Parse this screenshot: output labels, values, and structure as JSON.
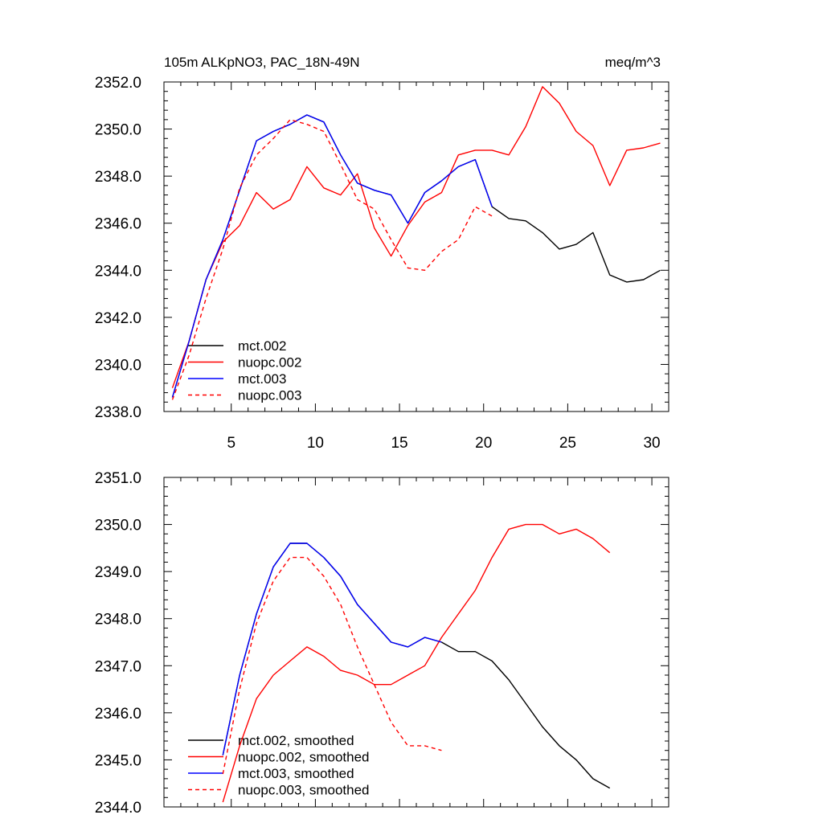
{
  "chart_data": [
    {
      "type": "line",
      "title_left": "105m ALKpNO3, PAC_18N-49N",
      "title_right": "meq/m^3",
      "xlim": [
        1,
        31
      ],
      "ylim": [
        2338.0,
        2352.0
      ],
      "x_ticks": [
        5,
        10,
        15,
        20,
        25,
        30
      ],
      "y_ticks": [
        2338.0,
        2340.0,
        2342.0,
        2344.0,
        2346.0,
        2348.0,
        2350.0,
        2352.0
      ],
      "y_tick_labels": [
        "2338.0",
        "2340.0",
        "2342.0",
        "2344.0",
        "2346.0",
        "2348.0",
        "2350.0",
        "2352.0"
      ],
      "show_x_labels": true,
      "legend_position": "bottom-left",
      "series": [
        {
          "name": "mct.002",
          "color": "#000000",
          "dash": "solid",
          "x": [
            1.5,
            2.5,
            3.5,
            4.5,
            5.5,
            6.5,
            7.5,
            8.5,
            9.5,
            10.5,
            11.5,
            12.5,
            13.5,
            14.5,
            15.5,
            16.5,
            17.5,
            18.5,
            19.5,
            20.5,
            21.5,
            22.5,
            23.5,
            24.5,
            25.5,
            26.5,
            27.5,
            28.5,
            29.5,
            30.5
          ],
          "values": [
            2338.6,
            2341.0,
            2343.6,
            2345.3,
            2347.4,
            2349.5,
            2349.9,
            2350.2,
            2350.6,
            2350.3,
            2348.9,
            2347.7,
            2347.4,
            2347.2,
            2346.0,
            2347.3,
            2347.8,
            2348.4,
            2348.7,
            2346.7,
            2346.2,
            2346.1,
            2345.6,
            2344.9,
            2345.1,
            2345.6,
            2343.8,
            2343.5,
            2343.6,
            2344.0
          ]
        },
        {
          "name": "nuopc.002",
          "color": "#ff0000",
          "dash": "solid",
          "x": [
            1.5,
            2.5,
            3.5,
            4.5,
            5.5,
            6.5,
            7.5,
            8.5,
            9.5,
            10.5,
            11.5,
            12.5,
            13.5,
            14.5,
            15.5,
            16.5,
            17.5,
            18.5,
            19.5,
            20.5,
            21.5,
            22.5,
            23.5,
            24.5,
            25.5,
            26.5,
            27.5,
            28.5,
            29.5,
            30.5
          ],
          "values": [
            2339.0,
            2341.0,
            2343.6,
            2345.2,
            2345.9,
            2347.3,
            2346.6,
            2347.0,
            2348.4,
            2347.5,
            2347.2,
            2348.1,
            2345.8,
            2344.6,
            2345.9,
            2346.9,
            2347.3,
            2348.9,
            2349.1,
            2349.1,
            2348.9,
            2350.1,
            2351.8,
            2351.1,
            2349.9,
            2349.3,
            2347.6,
            2349.1,
            2349.2,
            2349.4
          ]
        },
        {
          "name": "mct.003",
          "color": "#0000ff",
          "dash": "solid",
          "x": [
            1.5,
            2.5,
            3.5,
            4.5,
            5.5,
            6.5,
            7.5,
            8.5,
            9.5,
            10.5,
            11.5,
            12.5,
            13.5,
            14.5,
            15.5,
            16.5,
            17.5,
            18.5,
            19.5,
            20.5
          ],
          "values": [
            2338.6,
            2341.0,
            2343.6,
            2345.3,
            2347.4,
            2349.5,
            2349.9,
            2350.2,
            2350.6,
            2350.3,
            2348.9,
            2347.7,
            2347.4,
            2347.2,
            2346.0,
            2347.3,
            2347.8,
            2348.4,
            2348.7,
            2346.7
          ]
        },
        {
          "name": "nuopc.003",
          "color": "#ff0000",
          "dash": "dashed",
          "x": [
            1.5,
            2.5,
            3.5,
            4.5,
            5.5,
            6.5,
            7.5,
            8.5,
            9.5,
            10.5,
            11.5,
            12.5,
            13.5,
            14.5,
            15.5,
            16.5,
            17.5,
            18.5,
            19.5,
            20.5
          ],
          "values": [
            2338.5,
            2340.4,
            2342.8,
            2344.9,
            2347.5,
            2348.9,
            2349.6,
            2350.4,
            2350.2,
            2349.9,
            2348.5,
            2347.0,
            2346.6,
            2345.3,
            2344.1,
            2344.0,
            2344.8,
            2345.3,
            2346.7,
            2346.3
          ]
        }
      ]
    },
    {
      "type": "line",
      "xlim": [
        1,
        31
      ],
      "ylim": [
        2344.0,
        2351.0
      ],
      "x_ticks": [
        5,
        10,
        15,
        20,
        25,
        30
      ],
      "y_ticks": [
        2344.0,
        2345.0,
        2346.0,
        2347.0,
        2348.0,
        2349.0,
        2350.0,
        2351.0
      ],
      "y_tick_labels": [
        "2344.0",
        "2345.0",
        "2346.0",
        "2347.0",
        "2348.0",
        "2349.0",
        "2350.0",
        "2351.0"
      ],
      "show_x_labels": false,
      "legend_position": "bottom-left",
      "series": [
        {
          "name": "mct.002, smoothed",
          "color": "#000000",
          "dash": "solid",
          "x": [
            4.5,
            5.5,
            6.5,
            7.5,
            8.5,
            9.5,
            10.5,
            11.5,
            12.5,
            13.5,
            14.5,
            15.5,
            16.5,
            17.5,
            18.5,
            19.5,
            20.5,
            21.5,
            22.5,
            23.5,
            24.5,
            25.5,
            26.5,
            27.5
          ],
          "values": [
            2345.1,
            2346.8,
            2348.1,
            2349.1,
            2349.6,
            2349.6,
            2349.3,
            2348.9,
            2348.3,
            2347.9,
            2347.5,
            2347.4,
            2347.6,
            2347.5,
            2347.3,
            2347.3,
            2347.1,
            2346.7,
            2346.2,
            2345.7,
            2345.3,
            2345.0,
            2344.6,
            2344.4
          ]
        },
        {
          "name": "nuopc.002, smoothed",
          "color": "#ff0000",
          "dash": "solid",
          "x": [
            4.5,
            5.5,
            6.5,
            7.5,
            8.5,
            9.5,
            10.5,
            11.5,
            12.5,
            13.5,
            14.5,
            15.5,
            16.5,
            17.5,
            18.5,
            19.5,
            20.5,
            21.5,
            22.5,
            23.5,
            24.5,
            25.5,
            26.5,
            27.5
          ],
          "values": [
            2344.1,
            2345.3,
            2346.3,
            2346.8,
            2347.1,
            2347.4,
            2347.2,
            2346.9,
            2346.8,
            2346.6,
            2346.6,
            2346.8,
            2347.0,
            2347.6,
            2348.1,
            2348.6,
            2349.3,
            2349.9,
            2350.0,
            2350.0,
            2349.8,
            2349.9,
            2349.7,
            2349.4
          ]
        },
        {
          "name": "mct.003, smoothed",
          "color": "#0000ff",
          "dash": "solid",
          "x": [
            4.5,
            5.5,
            6.5,
            7.5,
            8.5,
            9.5,
            10.5,
            11.5,
            12.5,
            13.5,
            14.5,
            15.5,
            16.5,
            17.5
          ],
          "values": [
            2345.1,
            2346.8,
            2348.1,
            2349.1,
            2349.6,
            2349.6,
            2349.3,
            2348.9,
            2348.3,
            2347.9,
            2347.5,
            2347.4,
            2347.6,
            2347.5
          ]
        },
        {
          "name": "nuopc.003, smoothed",
          "color": "#ff0000",
          "dash": "dashed",
          "x": [
            4.5,
            5.5,
            6.5,
            7.5,
            8.5,
            9.5,
            10.5,
            11.5,
            12.5,
            13.5,
            14.5,
            15.5,
            16.5,
            17.5
          ],
          "values": [
            2344.7,
            2346.5,
            2347.9,
            2348.8,
            2349.3,
            2349.3,
            2348.9,
            2348.3,
            2347.4,
            2346.6,
            2345.8,
            2345.3,
            2345.3,
            2345.2
          ]
        }
      ]
    }
  ]
}
